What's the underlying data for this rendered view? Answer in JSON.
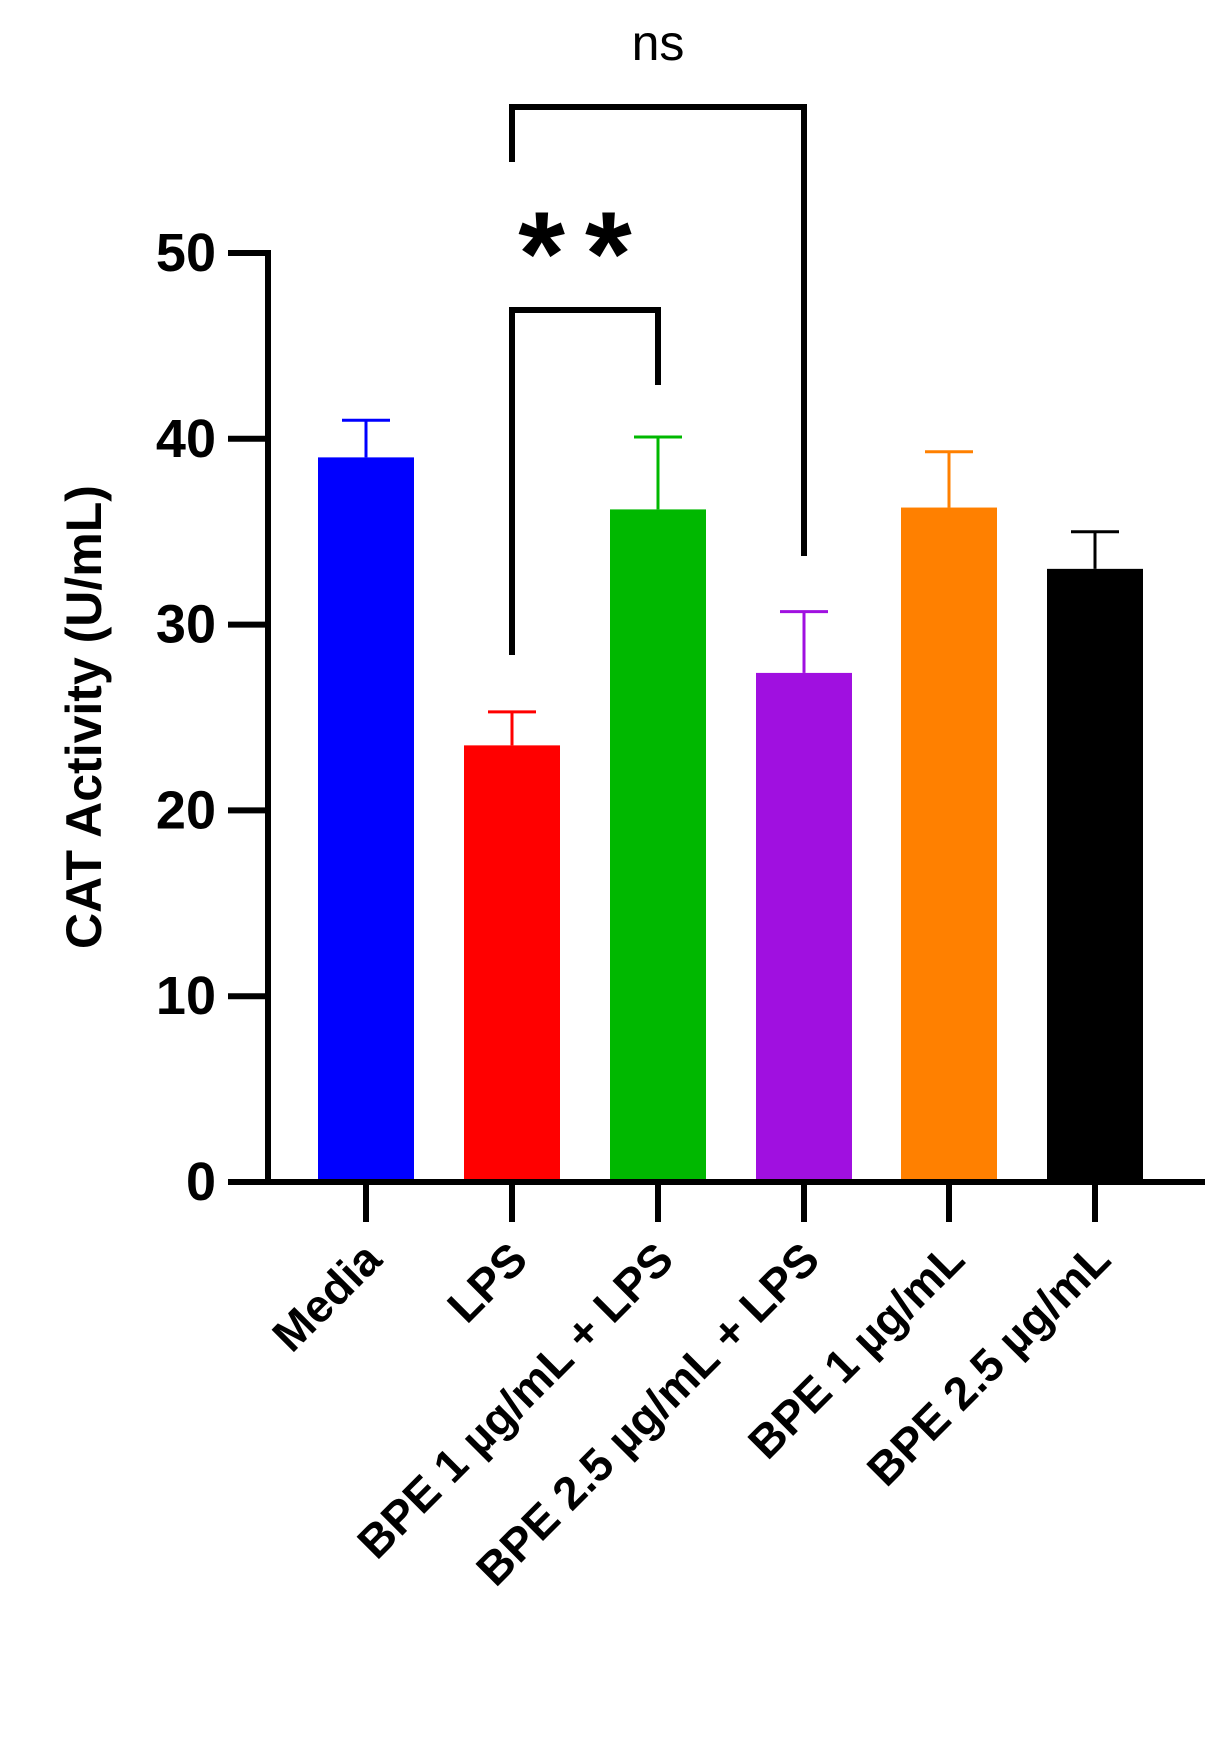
{
  "chart_data": {
    "type": "bar",
    "title": "",
    "xlabel": "",
    "ylabel": "CAT Activity (U/mL)",
    "ylim": [
      0,
      50
    ],
    "yticks": [
      0,
      10,
      20,
      30,
      40,
      50
    ],
    "categories": [
      "Media",
      "LPS",
      "BPE 1 µg/mL + LPS",
      "BPE 2.5 µg/mL + LPS",
      "BPE 1 µg/mL",
      "BPE 2.5 µg/mL"
    ],
    "values": [
      39.0,
      23.5,
      36.2,
      27.4,
      36.3,
      33.0
    ],
    "errors": [
      2.0,
      1.8,
      3.9,
      3.3,
      3.0,
      2.0
    ],
    "colors": [
      "#0000ff",
      "#ff0000",
      "#00b800",
      "#a010e0",
      "#ff8000",
      "#000000"
    ],
    "annotations": [
      {
        "text": "**",
        "from": "LPS",
        "to": "BPE 1 µg/mL + LPS"
      },
      {
        "text": "ns",
        "from": "LPS",
        "to": "BPE 2.5 µg/mL + LPS"
      }
    ]
  }
}
